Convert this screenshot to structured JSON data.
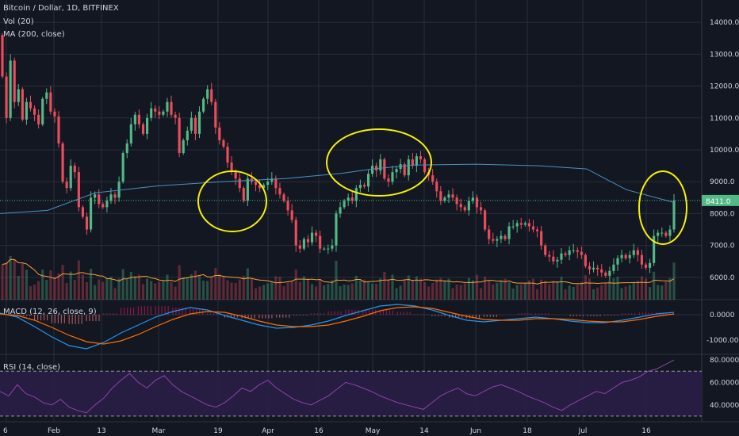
{
  "chart_data": {
    "type": "candlestick",
    "title": "Bitcoin / Dollar, 1D, BITFINEX",
    "indicators": [
      "Vol (20)",
      "MA (200, close)"
    ],
    "current_price_label": "8411.0",
    "price_axis": {
      "ticks": [
        "14000.0",
        "13000.0",
        "12000.0",
        "11000.0",
        "10000.0",
        "9000.0",
        "8000.0",
        "7000.0",
        "6000.0"
      ],
      "tick_values": [
        14000,
        13000,
        12000,
        11000,
        10000,
        9000,
        8000,
        7000,
        6000
      ],
      "ylim": [
        5300,
        14700
      ]
    },
    "macd": {
      "label": "MACD (12, 26, close, 9)",
      "ticks": [
        "0.0000",
        "-1000.0000"
      ]
    },
    "rsi": {
      "label": "RSI (14, close)",
      "ticks": [
        "80.0000",
        "60.0000",
        "40.0000"
      ]
    },
    "x_labels": [
      "6",
      "Feb",
      "13",
      "Mar",
      "19",
      "Apr",
      "16",
      "May",
      "14",
      "Jun",
      "18",
      "Jul",
      "16"
    ],
    "candles_close": [
      12300,
      11000,
      12800,
      11500,
      11900,
      10950,
      11500,
      11300,
      11100,
      10800,
      11600,
      11800,
      11200,
      11050,
      10200,
      9000,
      8800,
      9500,
      9300,
      8200,
      7900,
      7500,
      8500,
      8600,
      8300,
      8200,
      8400,
      8600,
      8500,
      9000,
      9900,
      10200,
      10800,
      11100,
      10800,
      10500,
      11000,
      11300,
      11200,
      11100,
      11200,
      11500,
      11100,
      11000,
      9900,
      10300,
      10600,
      11000,
      10500,
      11200,
      11600,
      11900,
      11500,
      10700,
      10300,
      10100,
      9600,
      9300,
      9100,
      8800,
      8400,
      9100,
      9000,
      8900,
      8800,
      8900,
      9000,
      9100,
      8800,
      8600,
      8400,
      8100,
      7800,
      7000,
      6900,
      7200,
      7100,
      7400,
      7300,
      6900,
      6900,
      6900,
      7000,
      8000,
      8200,
      8400,
      8500,
      8400,
      8800,
      8900,
      8850,
      9250,
      9500,
      9350,
      9700,
      9100,
      9000,
      9300,
      9400,
      9550,
      9200,
      9700,
      9500,
      9800,
      9700,
      9300,
      9200,
      9000,
      8700,
      8400,
      8500,
      8600,
      8500,
      8300,
      8200,
      8100,
      8400,
      8500,
      8200,
      8100,
      7500,
      7200,
      7150,
      7200,
      7300,
      7200,
      7600,
      7600,
      7700,
      7650,
      7700,
      7600,
      7500,
      7450,
      7000,
      6700,
      6650,
      6500,
      6550,
      6750,
      6700,
      6850,
      6850,
      6800,
      6700,
      6350,
      6250,
      6300,
      6250,
      6150,
      6050,
      6200,
      6400,
      6600,
      6700,
      6600,
      6700,
      6850,
      6700,
      6400,
      6300,
      6450,
      7300,
      7400,
      7400,
      7300,
      7500,
      8411
    ]
  },
  "colors": {
    "background": "#131722",
    "grid": "#2a2e39",
    "up": "#53b987",
    "down": "#eb4d5c",
    "ma": "#4a90c2",
    "volume_ma": "#f4a23c",
    "macd_line": "#2196f3",
    "signal_line": "#ff6d00",
    "rsi_line": "#8e44ad",
    "rsi_band": "#2a1d45",
    "annotation": "#f5f200",
    "price_tag": "#53b987",
    "text": "#d1d4dc"
  }
}
